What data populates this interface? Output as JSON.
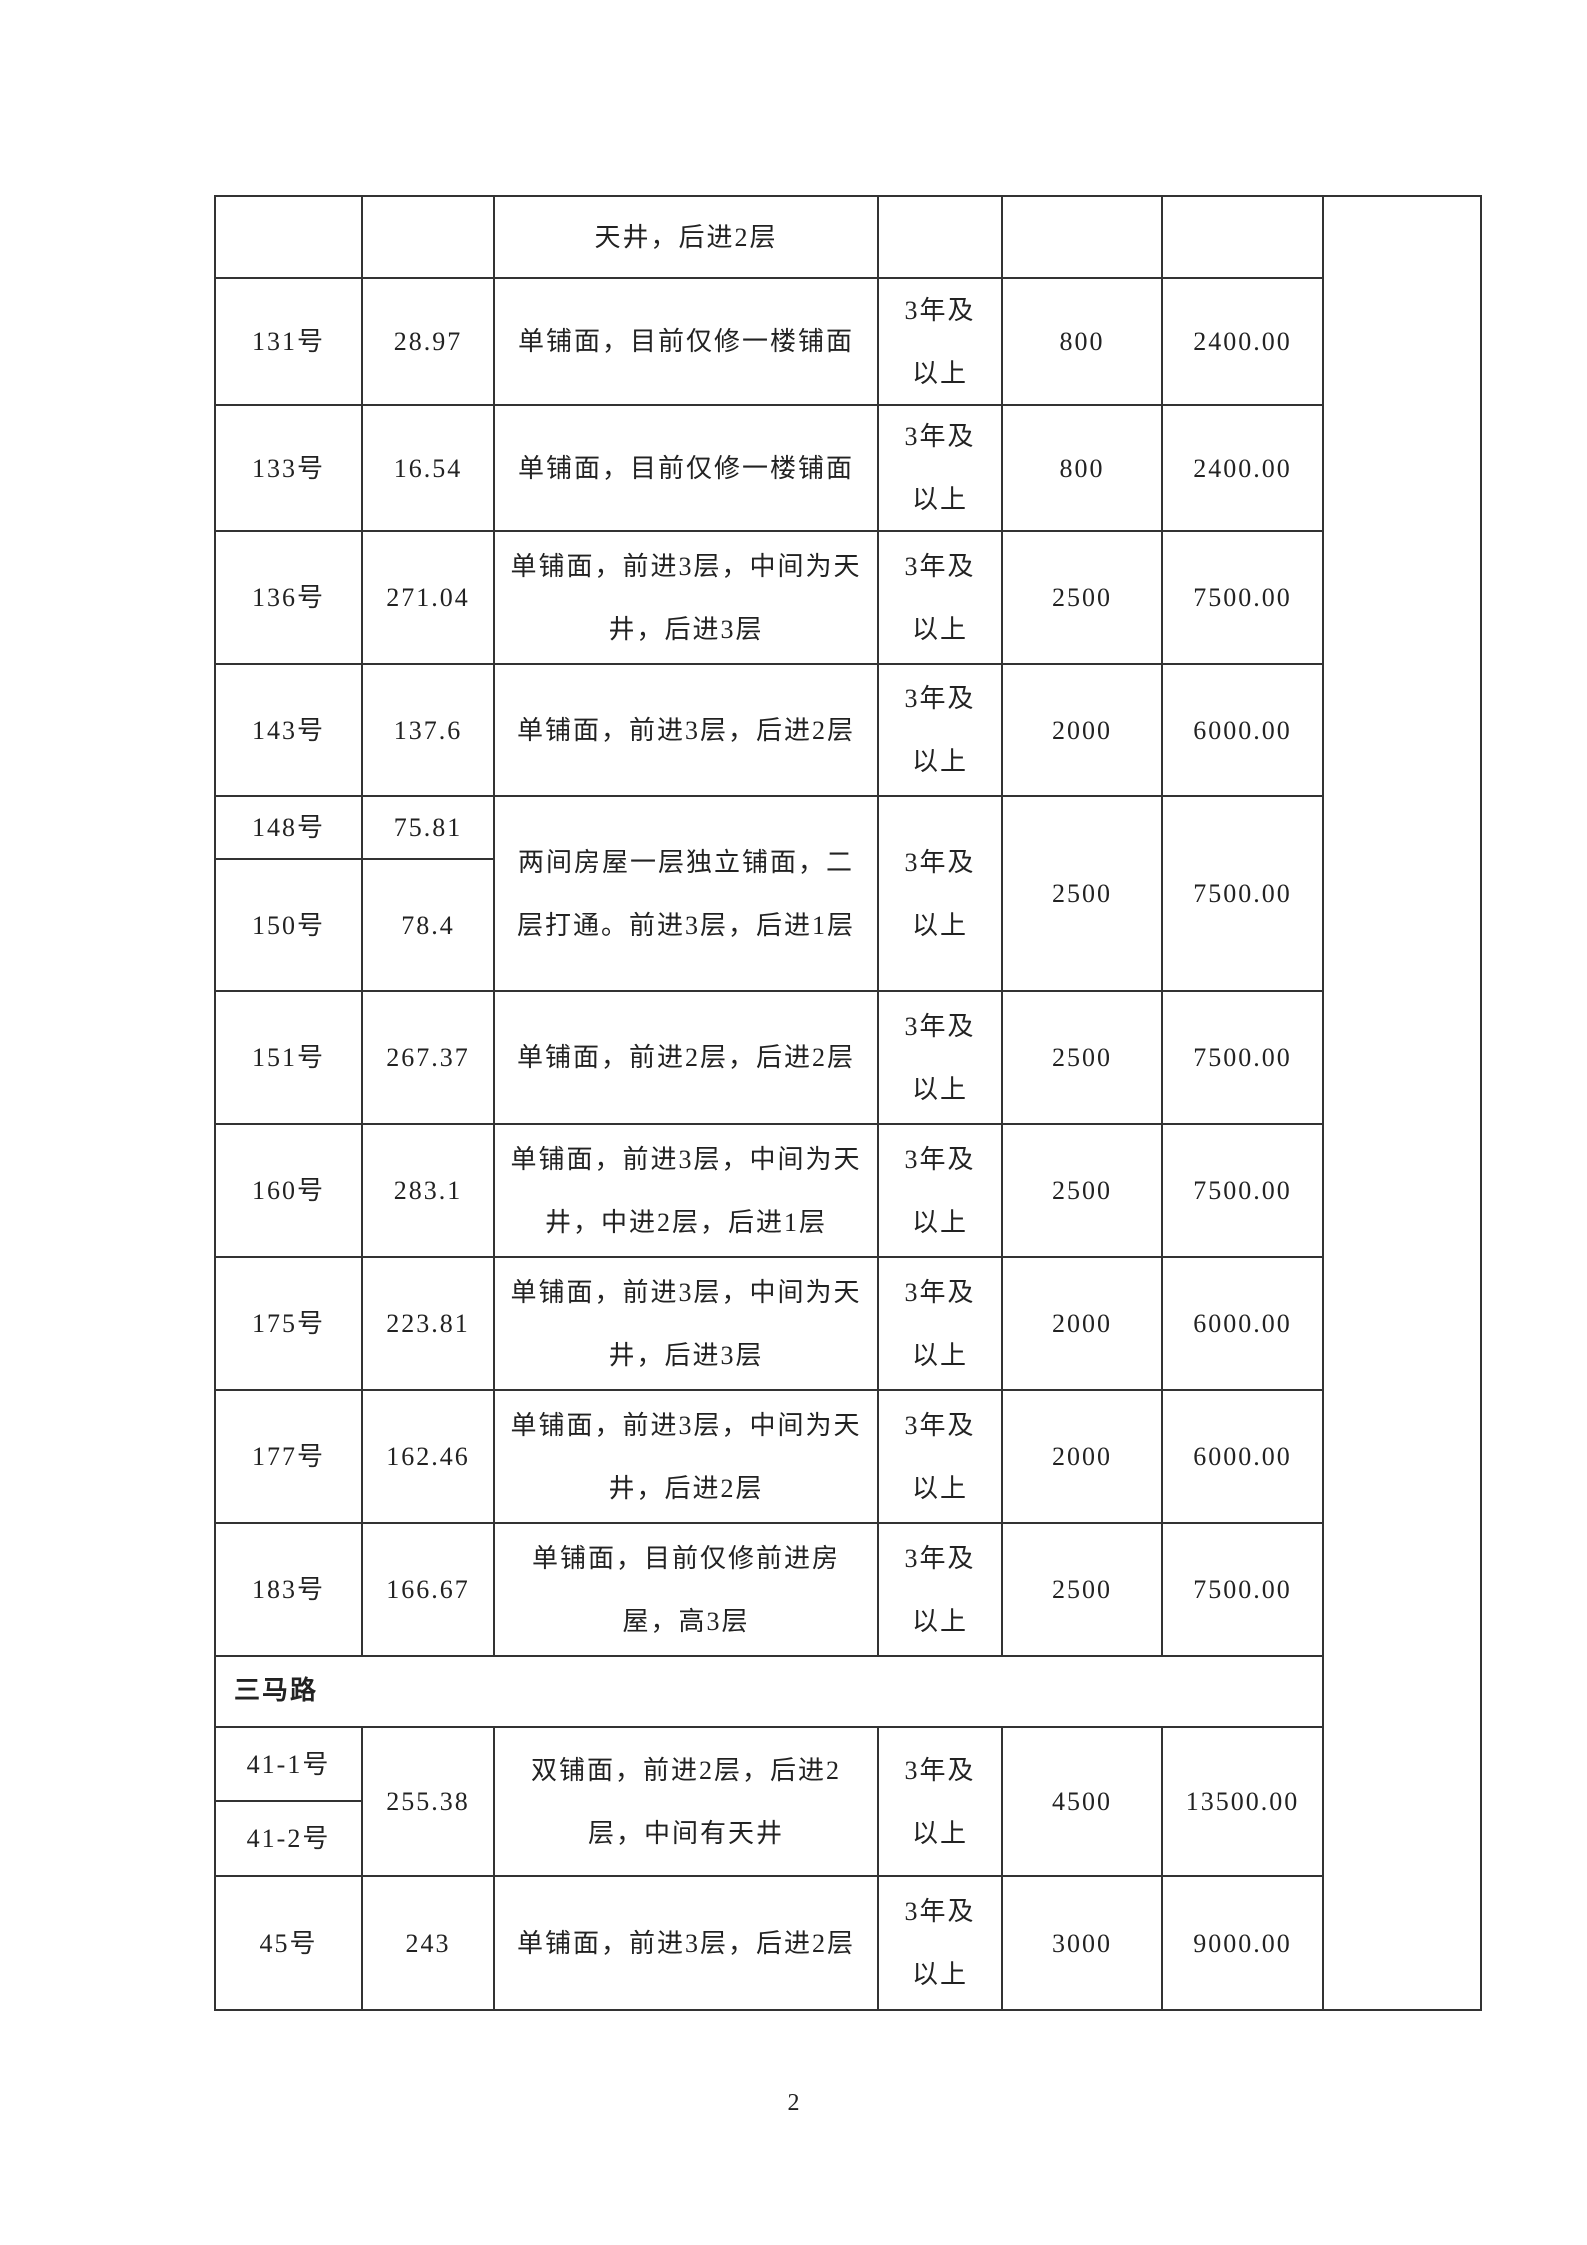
{
  "table": {
    "rows": [
      {
        "description": "天井，后进2层"
      },
      {
        "number": "131号",
        "area": "28.97",
        "description": "单铺面，目前仅修一楼铺面",
        "term": "3年及以上",
        "monthly_rent": "800",
        "total": "2400.00"
      },
      {
        "number": "133号",
        "area": "16.54",
        "description": "单铺面，目前仅修一楼铺面",
        "term": "3年及以上",
        "monthly_rent": "800",
        "total": "2400.00"
      },
      {
        "number": "136号",
        "area": "271.04",
        "description": "单铺面，前进3层，中间为天井，后进3层",
        "term": "3年及以上",
        "monthly_rent": "2500",
        "total": "7500.00"
      },
      {
        "number": "143号",
        "area": "137.6",
        "description": "单铺面，前进3层，后进2层",
        "term": "3年及以上",
        "monthly_rent": "2000",
        "total": "6000.00"
      },
      {
        "numbers": [
          "148号",
          "150号"
        ],
        "areas": [
          "75.81",
          "78.4"
        ],
        "description": "两间房屋一层独立铺面，二层打通。前进3层，后进1层",
        "term": "3年及以上",
        "monthly_rent": "2500",
        "total": "7500.00"
      },
      {
        "number": "151号",
        "area": "267.37",
        "description": "单铺面，前进2层，后进2层",
        "term": "3年及以上",
        "monthly_rent": "2500",
        "total": "7500.00"
      },
      {
        "number": "160号",
        "area": "283.1",
        "description": "单铺面，前进3层，中间为天井，中进2层，后进1层",
        "term": "3年及以上",
        "monthly_rent": "2500",
        "total": "7500.00"
      },
      {
        "number": "175号",
        "area": "223.81",
        "description": "单铺面，前进3层，中间为天井，后进3层",
        "term": "3年及以上",
        "monthly_rent": "2000",
        "total": "6000.00"
      },
      {
        "number": "177号",
        "area": "162.46",
        "description": "单铺面，前进3层，中间为天井，后进2层",
        "term": "3年及以上",
        "monthly_rent": "2000",
        "total": "6000.00"
      },
      {
        "number": "183号",
        "area": "166.67",
        "description": "单铺面，目前仅修前进房屋，高3层",
        "term": "3年及以上",
        "monthly_rent": "2500",
        "total": "7500.00"
      },
      {
        "section": "三马路"
      },
      {
        "numbers": [
          "41-1号",
          "41-2号"
        ],
        "area": "255.38",
        "description": "双铺面，前进2层，后进2层，中间有天井",
        "term": "3年及以上",
        "monthly_rent": "4500",
        "total": "13500.00"
      },
      {
        "number": "45号",
        "area": "243",
        "description": "单铺面，前进3层，后进2层",
        "term": "3年及以上",
        "monthly_rent": "3000",
        "total": "9000.00"
      }
    ]
  },
  "page_number": "2"
}
